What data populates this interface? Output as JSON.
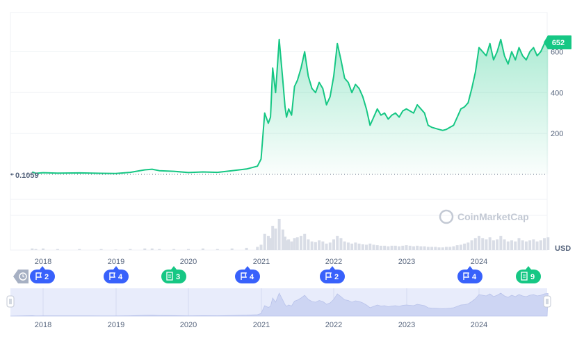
{
  "chart_data": {
    "type": "area",
    "title": "",
    "xlabel": "",
    "ylabel": "",
    "currency_label": "USD",
    "start_value_label": "0.1059",
    "current_price_badge": "652",
    "ylim": [
      -50,
      720
    ],
    "x_ticks": [
      "2018",
      "2019",
      "2020",
      "2021",
      "2022",
      "2023",
      "2024"
    ],
    "y_ticks": [
      200,
      400,
      600
    ],
    "y_tick_labels": [
      "200",
      "400",
      "600"
    ],
    "watermark": "CoinMarketCap",
    "grid": true,
    "colors": {
      "line": "#16c784",
      "area_top": "#16c784",
      "volume": "#d9dde6",
      "badge": "#16c784",
      "event_blue": "#3861fb",
      "event_green": "#16c784",
      "navigator_fill": "#e8ecfb",
      "navigator_series": "#cdd5f3",
      "grid": "#eff2f5",
      "axis_text": "#58667e"
    },
    "series": [
      {
        "x": [
          2017.85,
          2017.9,
          2018.0,
          2018.2,
          2018.5,
          2018.8,
          2019.0,
          2019.2,
          2019.4,
          2019.5,
          2019.6,
          2019.8,
          2020.0,
          2020.2,
          2020.4,
          2020.6,
          2020.8,
          2020.95,
          2021.0,
          2021.05,
          2021.1,
          2021.13,
          2021.16,
          2021.2,
          2021.25,
          2021.3,
          2021.33,
          2021.35,
          2021.38,
          2021.42,
          2021.46,
          2021.5,
          2021.55,
          2021.6,
          2021.65,
          2021.7,
          2021.75,
          2021.8,
          2021.85,
          2021.9,
          2021.95,
          2022.0,
          2022.05,
          2022.1,
          2022.15,
          2022.2,
          2022.25,
          2022.3,
          2022.35,
          2022.4,
          2022.45,
          2022.5,
          2022.55,
          2022.6,
          2022.65,
          2022.7,
          2022.75,
          2022.8,
          2022.85,
          2022.9,
          2022.95,
          2023.0,
          2023.05,
          2023.1,
          2023.15,
          2023.2,
          2023.25,
          2023.3,
          2023.35,
          2023.4,
          2023.45,
          2023.5,
          2023.55,
          2023.6,
          2023.65,
          2023.7,
          2023.75,
          2023.8,
          2023.85,
          2023.9,
          2023.95,
          2024.0,
          2024.05,
          2024.1,
          2024.15,
          2024.2,
          2024.25,
          2024.3,
          2024.35,
          2024.4,
          2024.45,
          2024.5,
          2024.55,
          2024.6,
          2024.65,
          2024.7,
          2024.75,
          2024.8,
          2024.85,
          2024.9,
          2024.95
        ],
        "values": [
          12,
          5,
          8,
          6,
          7,
          5,
          4,
          10,
          22,
          25,
          18,
          15,
          9,
          12,
          10,
          18,
          26,
          40,
          75,
          300,
          250,
          280,
          520,
          400,
          660,
          460,
          330,
          280,
          320,
          290,
          430,
          460,
          520,
          600,
          480,
          420,
          400,
          450,
          420,
          340,
          380,
          480,
          640,
          560,
          470,
          450,
          400,
          440,
          420,
          380,
          320,
          240,
          280,
          320,
          290,
          300,
          270,
          290,
          300,
          280,
          310,
          320,
          310,
          300,
          340,
          320,
          300,
          240,
          230,
          225,
          220,
          215,
          220,
          230,
          240,
          280,
          320,
          330,
          350,
          420,
          500,
          620,
          600,
          580,
          640,
          560,
          600,
          660,
          580,
          540,
          600,
          560,
          620,
          580,
          560,
          600,
          620,
          580,
          600,
          640,
          652
        ]
      }
    ],
    "volume": [
      3,
      2,
      3,
      2,
      2,
      2,
      1,
      2,
      3,
      3,
      2,
      2,
      2,
      3,
      2,
      3,
      4,
      6,
      10,
      30,
      26,
      22,
      45,
      40,
      58,
      38,
      25,
      18,
      20,
      16,
      22,
      24,
      26,
      30,
      20,
      16,
      15,
      18,
      16,
      12,
      14,
      20,
      26,
      22,
      16,
      14,
      12,
      14,
      12,
      11,
      10,
      12,
      10,
      9,
      8,
      8,
      7,
      8,
      8,
      7,
      8,
      9,
      8,
      7,
      8,
      7,
      7,
      6,
      6,
      6,
      5,
      5,
      6,
      6,
      7,
      9,
      10,
      12,
      14,
      18,
      22,
      26,
      22,
      20,
      24,
      18,
      20,
      26,
      20,
      16,
      18,
      16,
      22,
      18,
      16,
      18,
      20,
      16,
      18,
      22,
      24
    ],
    "events": [
      {
        "type": "history",
        "count": ""
      },
      {
        "type": "flag",
        "count": "2"
      },
      {
        "type": "flag",
        "count": "4"
      },
      {
        "type": "doc",
        "count": "3"
      },
      {
        "type": "flag",
        "count": "4"
      },
      {
        "type": "flag",
        "count": "2"
      },
      {
        "type": "flag",
        "count": "4"
      },
      {
        "type": "doc",
        "count": "9"
      }
    ],
    "navigator_ticks": [
      "2018",
      "2019",
      "2020",
      "2021",
      "2022",
      "2023",
      "2024"
    ]
  }
}
